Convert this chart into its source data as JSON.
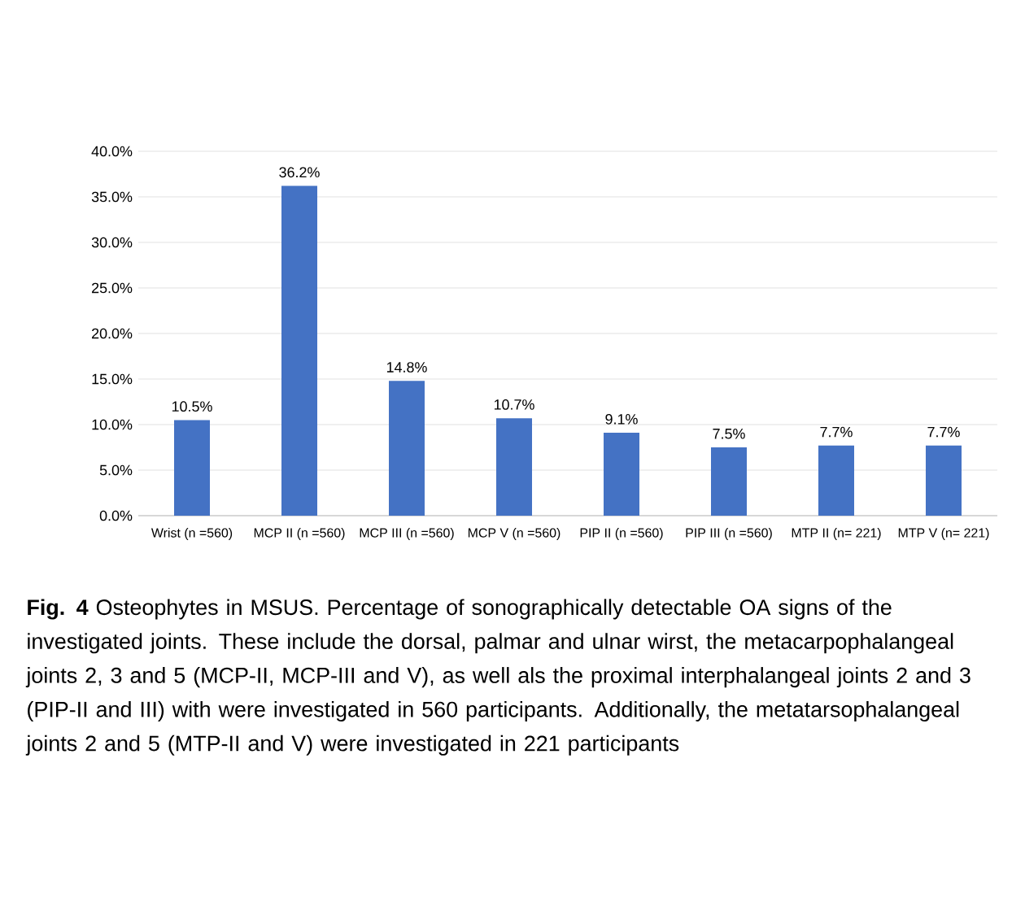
{
  "chart_data": {
    "type": "bar",
    "categories": [
      "Wrist (n =560)",
      "MCP II (n =560)",
      "MCP III (n =560)",
      "MCP V (n =560)",
      "PIP II (n =560)",
      "PIP III (n =560)",
      "MTP II (n= 221)",
      "MTP V (n= 221)"
    ],
    "values": [
      10.5,
      36.2,
      14.8,
      10.7,
      9.1,
      7.5,
      7.7,
      7.7
    ],
    "value_labels": [
      "10.5%",
      "36.2%",
      "14.8%",
      "10.7%",
      "9.1%",
      "7.5%",
      "7.7%",
      "7.7%"
    ],
    "color": "#4472c4",
    "ylim": [
      0,
      40
    ],
    "yticks": [
      {
        "value": 0,
        "label": "0.0%"
      },
      {
        "value": 5,
        "label": "5.0%"
      },
      {
        "value": 10,
        "label": "10.0%"
      },
      {
        "value": 15,
        "label": "15.0%"
      },
      {
        "value": 20,
        "label": "20.0%"
      },
      {
        "value": 25,
        "label": "25.0%"
      },
      {
        "value": 30,
        "label": "30.0%"
      },
      {
        "value": 35,
        "label": "35.0%"
      },
      {
        "value": 40,
        "label": "40.0%"
      }
    ],
    "grid": "y",
    "annotations": [
      "**Fig. 4** Osteophytes in MSUS. Percentage of sonographically detectable OA signs of the investigated joints. These include the dorsal, palmar and ulnar wirst, the metacarpophalangeal joints 2, 3 and 5 (MCP-II, MCP-III and V), as well als the proximal interphalangeal joints 2 and 3 (PIP-II and III) with were investigated in 560 participants. Additionally, the metatarsophalangeal joints 2 and 5 (MTP-II and V) were investigated in 221 participants"
    ]
  }
}
